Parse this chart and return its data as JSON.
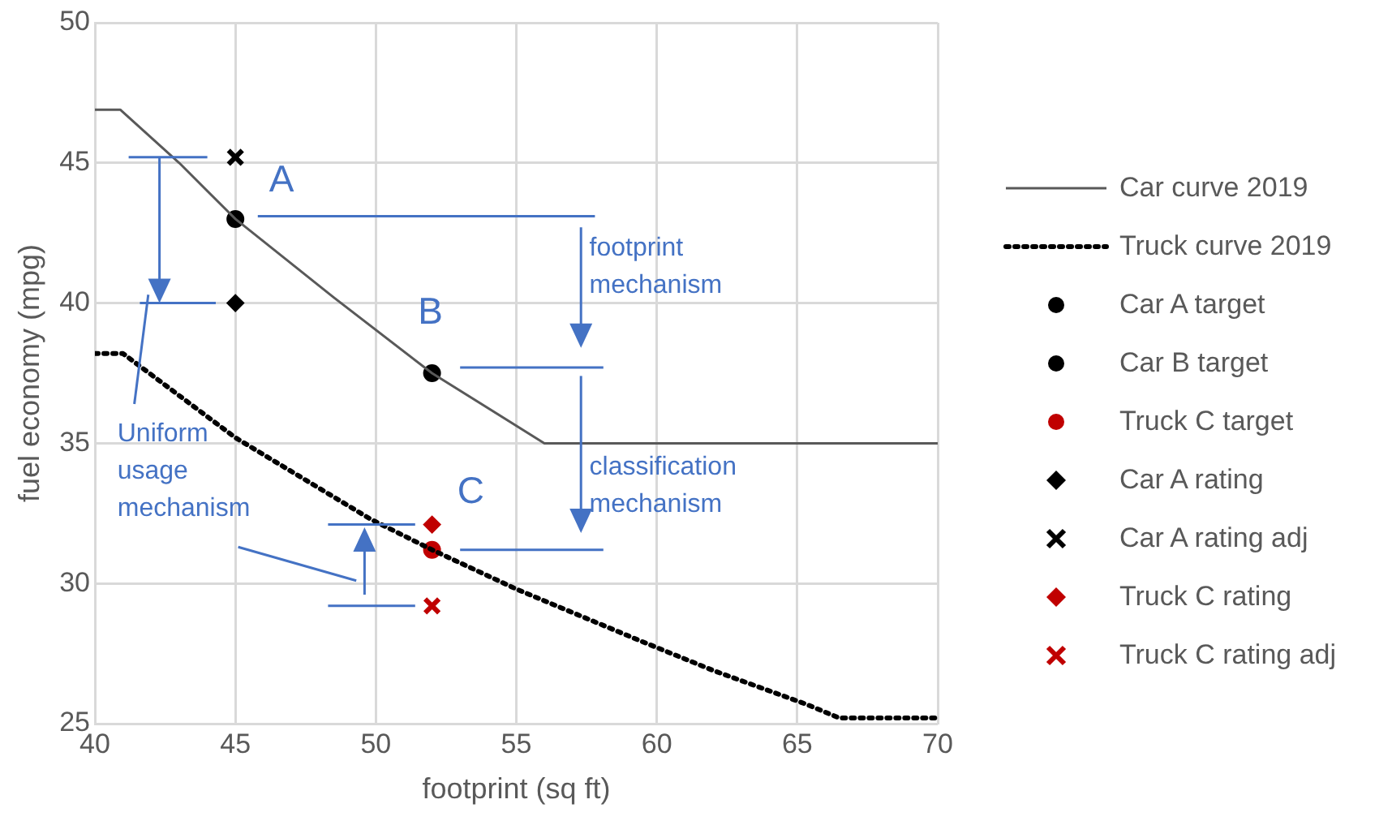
{
  "chart_data": {
    "type": "line",
    "xlabel": "footprint (sq ft)",
    "ylabel": "fuel economy (mpg)",
    "xlim": [
      40,
      70
    ],
    "xticks": [
      40,
      45,
      50,
      55,
      60,
      65,
      70
    ],
    "ylim": [
      25,
      50
    ],
    "yticks": [
      25,
      30,
      35,
      40,
      45,
      50
    ],
    "grid": true,
    "legend": "right",
    "series": [
      {
        "name": "Car curve 2019",
        "color": "#595959",
        "line_style": "solid",
        "marker": "none",
        "x": [
          40,
          40.9,
          43,
          45,
          48.5,
          52,
          56,
          70
        ],
        "values": [
          46.9,
          46.9,
          45,
          43,
          40.2,
          37.5,
          35,
          35
        ]
      },
      {
        "name": "Truck curve 2019",
        "color": "#000000",
        "line_style": "dotted",
        "marker": "none",
        "x": [
          40,
          41,
          45,
          49.8,
          52,
          55,
          59.3,
          62,
          65.3,
          66.5,
          70
        ],
        "values": [
          38.2,
          38.2,
          35.2,
          32.3,
          31.2,
          29.8,
          28,
          26.9,
          25.7,
          25.2,
          25.2
        ]
      },
      {
        "name": "Car A target",
        "type": "scatter",
        "color": "#000000",
        "marker": "circle",
        "x": [
          45
        ],
        "values": [
          43
        ]
      },
      {
        "name": "Car B target",
        "type": "scatter",
        "color": "#000000",
        "marker": "circle",
        "x": [
          52
        ],
        "values": [
          37.5
        ]
      },
      {
        "name": "Truck C target",
        "type": "scatter",
        "color": "#c00000",
        "marker": "circle",
        "x": [
          52
        ],
        "values": [
          31.2
        ]
      },
      {
        "name": "Car A rating",
        "type": "scatter",
        "color": "#000000",
        "marker": "diamond",
        "x": [
          45
        ],
        "values": [
          40
        ]
      },
      {
        "name": "Car A rating adj",
        "type": "scatter",
        "color": "#000000",
        "marker": "cross",
        "x": [
          45
        ],
        "values": [
          45.2
        ]
      },
      {
        "name": "Truck C rating",
        "type": "scatter",
        "color": "#c00000",
        "marker": "diamond",
        "x": [
          52
        ],
        "values": [
          32.1
        ]
      },
      {
        "name": "Truck C rating adj",
        "type": "scatter",
        "color": "#c00000",
        "marker": "cross",
        "x": [
          52
        ],
        "values": [
          29.2
        ]
      }
    ],
    "annotations": [
      "A",
      "B",
      "C",
      "footprint mechanism",
      "classification mechanism",
      "Uniform usage mechanism"
    ]
  }
}
